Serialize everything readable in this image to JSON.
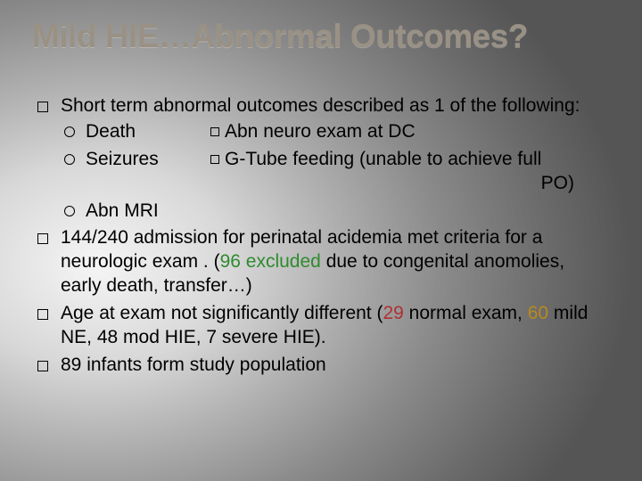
{
  "colors": {
    "title_color": "#9a9185",
    "text_color": "#000000",
    "highlight_green": "#2e8b2e",
    "highlight_red": "#b03030",
    "highlight_amber": "#b78a1e",
    "background_gradient": [
      "#f5f5f5",
      "#d8d8d8",
      "#b0b0b0",
      "#8a8a8a",
      "#6a6a6a",
      "#555555"
    ]
  },
  "typography": {
    "title_fontsize_pt": 28,
    "title_weight": "bold",
    "body_fontsize_pt": 16,
    "font_family": "Arial"
  },
  "title": "Mild HIE…Abnormal Outcomes?",
  "bullets": [
    {
      "text": "Short term abnormal outcomes described as 1 of the following:",
      "sub": [
        {
          "left": "Death",
          "right": "Abn neuro exam at DC"
        },
        {
          "left": "Seizures",
          "right": "G-Tube feeding (unable to achieve full"
        },
        {
          "right_tail": "PO)"
        },
        {
          "left": "Abn MRI"
        }
      ]
    },
    {
      "text_pre": "144/240 admission for perinatal acidemia met criteria for a neurologic exam . (",
      "text_hl": "96 excluded",
      "text_hl_color": "green",
      "text_post": " due to congenital anomolies, early death, transfer…)"
    },
    {
      "text_pre": "Age at exam not significantly different (",
      "segments": [
        {
          "text": "29",
          "color": "red"
        },
        {
          "text": " normal exam, "
        },
        {
          "text": "60",
          "color": "amber"
        },
        {
          "text": " mild NE, 48 mod HIE, 7 severe HIE)."
        }
      ]
    },
    {
      "text": "89 infants form study population"
    }
  ]
}
